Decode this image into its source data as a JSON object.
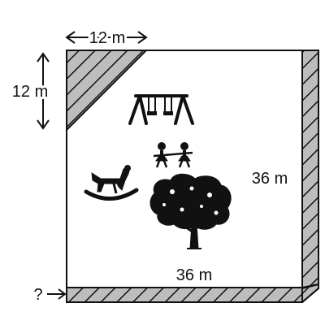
{
  "labels": {
    "top_corner_width": "12 m",
    "left_corner_height": "12 m",
    "right_side": "36 m",
    "bottom_side": "36 m",
    "path_width_unknown": "?"
  },
  "icons": [
    "swing-set-icon",
    "children-icon",
    "rocking-horse-icon",
    "tree-icon"
  ],
  "colors": {
    "outline": "#111111",
    "hatch_fill": "#bdbdbd",
    "background": "#ffffff"
  }
}
